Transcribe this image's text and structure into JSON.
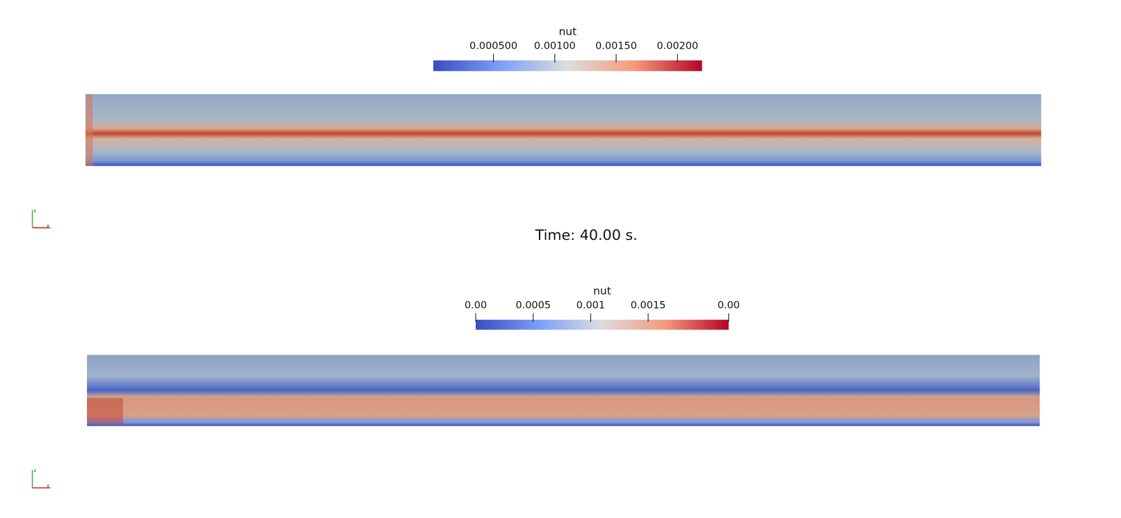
{
  "panels": [
    {
      "colorbar": {
        "title": "nut",
        "range": [
          1e-05,
          0.0022
        ],
        "ticks": [
          {
            "value": 0.0005,
            "label": "0.000500"
          },
          {
            "value": 0.001,
            "label": "0.00100"
          },
          {
            "value": 0.0015,
            "label": "0.00150"
          },
          {
            "value": 0.002,
            "label": "0.00200"
          }
        ]
      },
      "triad": [
        "z",
        "x"
      ]
    },
    {
      "colorbar": {
        "title": "nut",
        "range": [
          0,
          0.0022
        ],
        "ticks": [
          {
            "value": 0,
            "label": "0.00"
          },
          0.0005,
          0.001,
          0.0015,
          {
            "value": 0.0022,
            "label": "0.00"
          }
        ]
      },
      "triad": [
        "z",
        "x"
      ]
    }
  ],
  "time_label": "Time: 40.00 s."
}
